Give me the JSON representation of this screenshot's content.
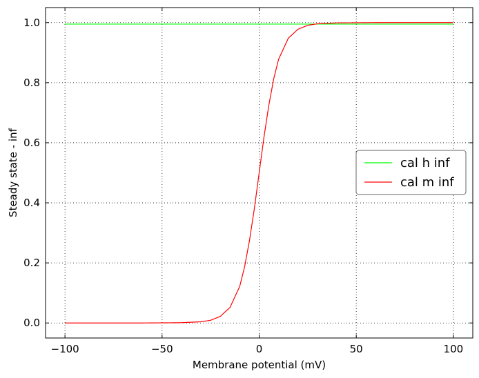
{
  "chart_data": {
    "type": "line",
    "xlabel": "Membrane potential (mV)",
    "ylabel": "Steady state - inf",
    "xlim": [
      -110,
      110
    ],
    "ylim": [
      -0.05,
      1.05
    ],
    "xticks": [
      -100,
      -50,
      0,
      50,
      100
    ],
    "xtick_labels": [
      "−100",
      "−50",
      "0",
      "50",
      "100"
    ],
    "yticks": [
      0.0,
      0.2,
      0.4,
      0.6,
      0.8,
      1.0
    ],
    "ytick_labels": [
      "0.0",
      "0.2",
      "0.4",
      "0.6",
      "0.8",
      "1.0"
    ],
    "grid": true,
    "legend_position": "center-right",
    "series": [
      {
        "name": "cal h inf",
        "color": "#00ff00",
        "x": [
          -100,
          100
        ],
        "y": [
          0.995,
          0.995
        ]
      },
      {
        "name": "cal m inf",
        "color": "#ff0000",
        "x": [
          -100,
          -60,
          -40,
          -30,
          -25,
          -20,
          -15,
          -10,
          -7.5,
          -5,
          -2.5,
          0,
          2.5,
          5,
          7.5,
          10,
          15,
          20,
          25,
          30,
          40,
          60,
          100
        ],
        "y": [
          0.0,
          0.0,
          0.001,
          0.004,
          0.009,
          0.022,
          0.052,
          0.122,
          0.187,
          0.274,
          0.38,
          0.5,
          0.62,
          0.726,
          0.813,
          0.878,
          0.948,
          0.978,
          0.991,
          0.996,
          0.999,
          1.0,
          1.0
        ]
      }
    ]
  }
}
